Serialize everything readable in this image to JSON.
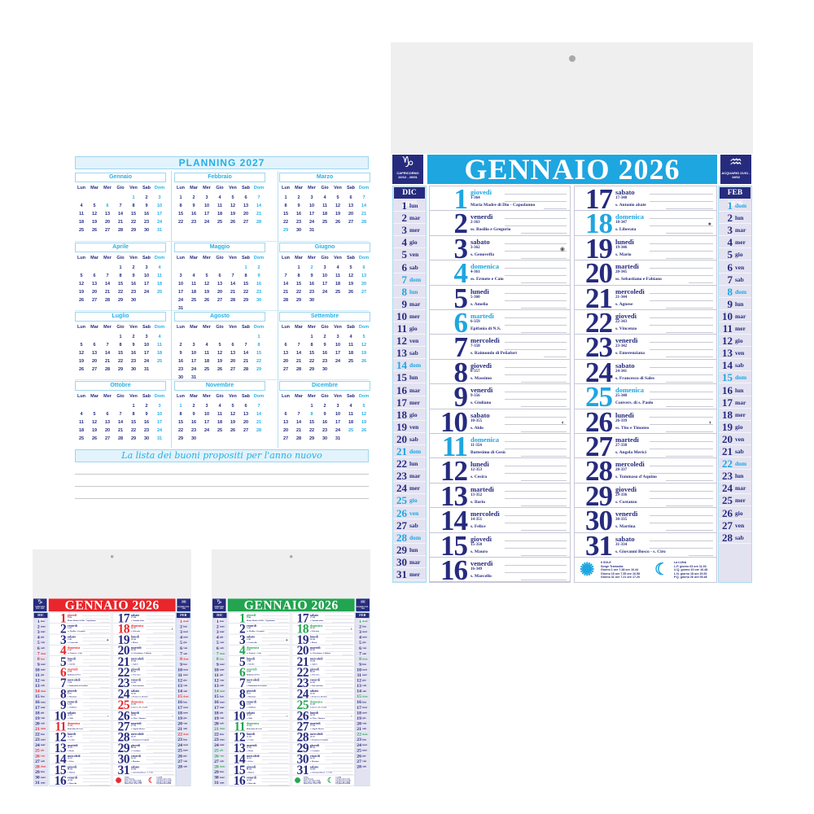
{
  "planning": {
    "title": "PLANNING 2027",
    "weekdays": [
      "Lun",
      "Mar",
      "Mer",
      "Gio",
      "Ven",
      "Sab",
      "Dom"
    ],
    "months": [
      {
        "name": "Gennaio",
        "start": 4,
        "days": 31,
        "holidays": [
          1,
          6
        ]
      },
      {
        "name": "Febbraio",
        "start": 0,
        "days": 28,
        "holidays": []
      },
      {
        "name": "Marzo",
        "start": 0,
        "days": 31,
        "holidays": [
          29
        ]
      },
      {
        "name": "Aprile",
        "start": 3,
        "days": 30,
        "holidays": []
      },
      {
        "name": "Maggio",
        "start": 5,
        "days": 31,
        "holidays": [
          1
        ]
      },
      {
        "name": "Giugno",
        "start": 1,
        "days": 30,
        "holidays": [
          2
        ]
      },
      {
        "name": "Luglio",
        "start": 3,
        "days": 31,
        "holidays": []
      },
      {
        "name": "Agosto",
        "start": 6,
        "days": 31,
        "holidays": []
      },
      {
        "name": "Settembre",
        "start": 2,
        "days": 30,
        "holidays": []
      },
      {
        "name": "Ottobre",
        "start": 4,
        "days": 31,
        "holidays": []
      },
      {
        "name": "Novembre",
        "start": 0,
        "days": 30,
        "holidays": [
          1
        ]
      },
      {
        "name": "Dicembre",
        "start": 2,
        "days": 31,
        "holidays": [
          8,
          25,
          26
        ]
      }
    ],
    "resolutions_title": "La lista dei buoni propositi per l'anno nuovo"
  },
  "calendar": {
    "title": "GENNAIO 2026",
    "colors": {
      "navy": "#262b7e",
      "blue": "#1ea6e0",
      "red": "#e8262b",
      "green": "#22a450"
    },
    "sign_left": {
      "icon": "capricorn-icon",
      "glyph": "♑",
      "label": "CAPRICORNO 22/12 - 20/01"
    },
    "sign_right": {
      "icon": "aquarius-icon",
      "glyph": "♒",
      "label": "ACQUARIO 21/01 - 19/02"
    },
    "prev_month": {
      "title": "DIC 2025",
      "days": [
        {
          "d": "1",
          "w": "lun"
        },
        {
          "d": "2",
          "w": "mar"
        },
        {
          "d": "3",
          "w": "mer"
        },
        {
          "d": "4",
          "w": "gio"
        },
        {
          "d": "5",
          "w": "ven"
        },
        {
          "d": "6",
          "w": "sab"
        },
        {
          "d": "7",
          "w": "dom",
          "h": true
        },
        {
          "d": "8",
          "w": "lun",
          "h": true
        },
        {
          "d": "9",
          "w": "mar"
        },
        {
          "d": "10",
          "w": "mer"
        },
        {
          "d": "11",
          "w": "gio"
        },
        {
          "d": "12",
          "w": "ven"
        },
        {
          "d": "13",
          "w": "sab"
        },
        {
          "d": "14",
          "w": "dom",
          "h": true
        },
        {
          "d": "15",
          "w": "lun"
        },
        {
          "d": "16",
          "w": "mar"
        },
        {
          "d": "17",
          "w": "mer"
        },
        {
          "d": "18",
          "w": "gio"
        },
        {
          "d": "19",
          "w": "ven"
        },
        {
          "d": "20",
          "w": "sab"
        },
        {
          "d": "21",
          "w": "dom",
          "h": true
        },
        {
          "d": "22",
          "w": "lun"
        },
        {
          "d": "23",
          "w": "mar"
        },
        {
          "d": "24",
          "w": "mer"
        },
        {
          "d": "25",
          "w": "gio",
          "h": true
        },
        {
          "d": "26",
          "w": "ven",
          "h": true
        },
        {
          "d": "27",
          "w": "sab"
        },
        {
          "d": "28",
          "w": "dom",
          "h": true
        },
        {
          "d": "29",
          "w": "lun"
        },
        {
          "d": "30",
          "w": "mar"
        },
        {
          "d": "31",
          "w": "mer"
        }
      ]
    },
    "next_month": {
      "title": "FEB 2026",
      "days": [
        {
          "d": "1",
          "w": "dom",
          "h": true
        },
        {
          "d": "2",
          "w": "lun"
        },
        {
          "d": "3",
          "w": "mar"
        },
        {
          "d": "4",
          "w": "mer"
        },
        {
          "d": "5",
          "w": "gio"
        },
        {
          "d": "6",
          "w": "ven"
        },
        {
          "d": "7",
          "w": "sab"
        },
        {
          "d": "8",
          "w": "dom",
          "h": true
        },
        {
          "d": "9",
          "w": "lun"
        },
        {
          "d": "10",
          "w": "mar"
        },
        {
          "d": "11",
          "w": "mer"
        },
        {
          "d": "12",
          "w": "gio"
        },
        {
          "d": "13",
          "w": "ven"
        },
        {
          "d": "14",
          "w": "sab"
        },
        {
          "d": "15",
          "w": "dom",
          "h": true
        },
        {
          "d": "16",
          "w": "lun"
        },
        {
          "d": "17",
          "w": "mar"
        },
        {
          "d": "18",
          "w": "mer"
        },
        {
          "d": "19",
          "w": "gio"
        },
        {
          "d": "20",
          "w": "ven"
        },
        {
          "d": "21",
          "w": "sab"
        },
        {
          "d": "22",
          "w": "dom",
          "h": true
        },
        {
          "d": "23",
          "w": "lun"
        },
        {
          "d": "24",
          "w": "mar"
        },
        {
          "d": "25",
          "w": "mer"
        },
        {
          "d": "26",
          "w": "gio"
        },
        {
          "d": "27",
          "w": "ven"
        },
        {
          "d": "28",
          "w": "sab"
        }
      ]
    },
    "days": [
      {
        "n": "1",
        "w": "giovedì",
        "c": "1-364",
        "s": "Maria Madre di Dio - Capodanno",
        "h": true
      },
      {
        "n": "2",
        "w": "venerdì",
        "c": "2-363",
        "s": "ss. Basilio e Gregorio"
      },
      {
        "n": "3",
        "w": "sabato",
        "c": "3-362",
        "s": "s. Genoveffa",
        "p": "◉"
      },
      {
        "n": "4",
        "w": "domenica",
        "c": "4-361",
        "s": "ss. Ermete e Caio",
        "h": true
      },
      {
        "n": "5",
        "w": "lunedì",
        "c": "5-360",
        "s": "s. Amelia"
      },
      {
        "n": "6",
        "w": "martedì",
        "c": "6-359",
        "s": "Epifania di N.S.",
        "h": true
      },
      {
        "n": "7",
        "w": "mercoledì",
        "c": "7-358",
        "s": "s. Raimondo di Peñafort"
      },
      {
        "n": "8",
        "w": "giovedì",
        "c": "8-357",
        "s": "s. Massimo"
      },
      {
        "n": "9",
        "w": "venerdì",
        "c": "9-356",
        "s": "s. Giuliano"
      },
      {
        "n": "10",
        "w": "sabato",
        "c": "10-355",
        "s": "s. Aldo",
        "p": "◐"
      },
      {
        "n": "11",
        "w": "domenica",
        "c": "11-354",
        "s": "Battesimo di Gesù",
        "h": true
      },
      {
        "n": "12",
        "w": "lunedì",
        "c": "12-353",
        "s": "s. Cesira"
      },
      {
        "n": "13",
        "w": "martedì",
        "c": "13-352",
        "s": "s. Ilario"
      },
      {
        "n": "14",
        "w": "mercoledì",
        "c": "14-351",
        "s": "s. Felice"
      },
      {
        "n": "15",
        "w": "giovedì",
        "c": "15-350",
        "s": "s. Mauro"
      },
      {
        "n": "16",
        "w": "venerdì",
        "c": "16-349",
        "s": "s. Marcello"
      },
      {
        "n": "17",
        "w": "sabato",
        "c": "17-348",
        "s": "s. Antonio abate"
      },
      {
        "n": "18",
        "w": "domenica",
        "c": "18-347",
        "s": "s. Liberata",
        "h": true,
        "p": "●"
      },
      {
        "n": "19",
        "w": "lunedì",
        "c": "19-346",
        "s": "s. Mario"
      },
      {
        "n": "20",
        "w": "martedì",
        "c": "20-345",
        "s": "ss. Sebastiano e Fabiano"
      },
      {
        "n": "21",
        "w": "mercoledì",
        "c": "21-344",
        "s": "s. Agnese"
      },
      {
        "n": "22",
        "w": "giovedì",
        "c": "22-343",
        "s": "s. Vincenzo"
      },
      {
        "n": "23",
        "w": "venerdì",
        "c": "23-342",
        "s": "s. Emerenziana"
      },
      {
        "n": "24",
        "w": "sabato",
        "c": "24-341",
        "s": "s. Francesco di Sales"
      },
      {
        "n": "25",
        "w": "domenica",
        "c": "25-340",
        "s": "Convers. di s. Paolo",
        "h": true
      },
      {
        "n": "26",
        "w": "lunedì",
        "c": "26-339",
        "s": "ss. Tito e Timoteo",
        "p": "◑"
      },
      {
        "n": "27",
        "w": "martedì",
        "c": "27-338",
        "s": "s. Angela Merici"
      },
      {
        "n": "28",
        "w": "mercoledì",
        "c": "28-337",
        "s": "s. Tommaso d'Aquino"
      },
      {
        "n": "29",
        "w": "giovedì",
        "c": "29-336",
        "s": "s. Costanzo"
      },
      {
        "n": "30",
        "w": "venerdì",
        "c": "30-335",
        "s": "s. Martina"
      },
      {
        "n": "31",
        "w": "sabato",
        "c": "31-334",
        "s": "s. Giovanni Bosco - s. Ciro"
      }
    ],
    "sun": {
      "title": "Il SOLE",
      "rise": "Sorge",
      "set": "Tramonta",
      "rows": [
        "Giorno 1 ore 7.38 ore 16.44",
        "Giorno 15 ore 7.35 ore 16.58",
        "Giorno 31 ore 7.21 ore 17.20"
      ]
    },
    "moon": {
      "title": "La LUNA",
      "rows": [
        "L.P. giorno 03 ore 11.03",
        "U.Q. giorno 10 ore 16.48",
        "L.N. giorno 18 ore 20.52",
        "P.Q. giorno 26 ore 05.48"
      ]
    }
  }
}
